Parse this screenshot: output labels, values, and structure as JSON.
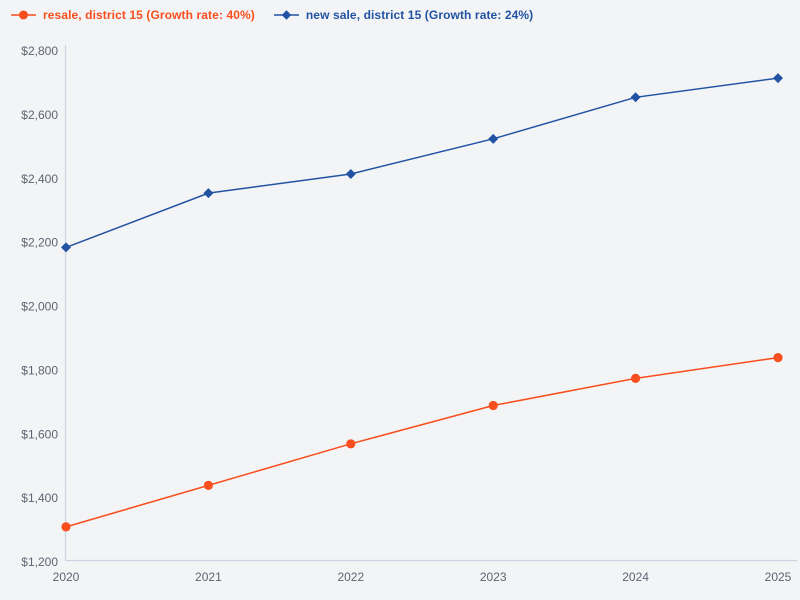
{
  "page": {
    "background": "#f3f4f6",
    "axis_color": "#ccd4e2",
    "tick_label_color": "#5c6672"
  },
  "legend": {
    "items": [
      {
        "label": "resale, district 15 (Growth rate: 40%)",
        "color": "#f94e1e",
        "marker": "circle"
      },
      {
        "label": "new sale, district 15 (Growth rate: 24%)",
        "color": "#2253a3",
        "marker": "diamond"
      }
    ]
  },
  "chart_data": {
    "type": "line",
    "x": [
      2020,
      2021,
      2022,
      2023,
      2024,
      2025
    ],
    "xticks_labels": [
      "2020",
      "2021",
      "2022",
      "2023",
      "2024",
      "2025"
    ],
    "series": [
      {
        "name": "resale, district 15",
        "growth_rate": "40%",
        "color": "#f94e1e",
        "marker": "circle",
        "values": [
          1310,
          1440,
          1570,
          1690,
          1775,
          1840
        ]
      },
      {
        "name": "new sale, district 15",
        "growth_rate": "24%",
        "color": "#2253a3",
        "marker": "diamond",
        "values": [
          2185,
          2355,
          2415,
          2525,
          2655,
          2715
        ]
      }
    ],
    "ylim": [
      1200,
      2800
    ],
    "ytick_step": 200,
    "yticks_labels": [
      "$1,200",
      "$1,400",
      "$1,600",
      "$1,800",
      "$2,000",
      "$2,200",
      "$2,400",
      "$2,600",
      "$2,800"
    ],
    "grid": false,
    "legend_position": "top-left",
    "title": "",
    "xlabel": "",
    "ylabel": ""
  }
}
